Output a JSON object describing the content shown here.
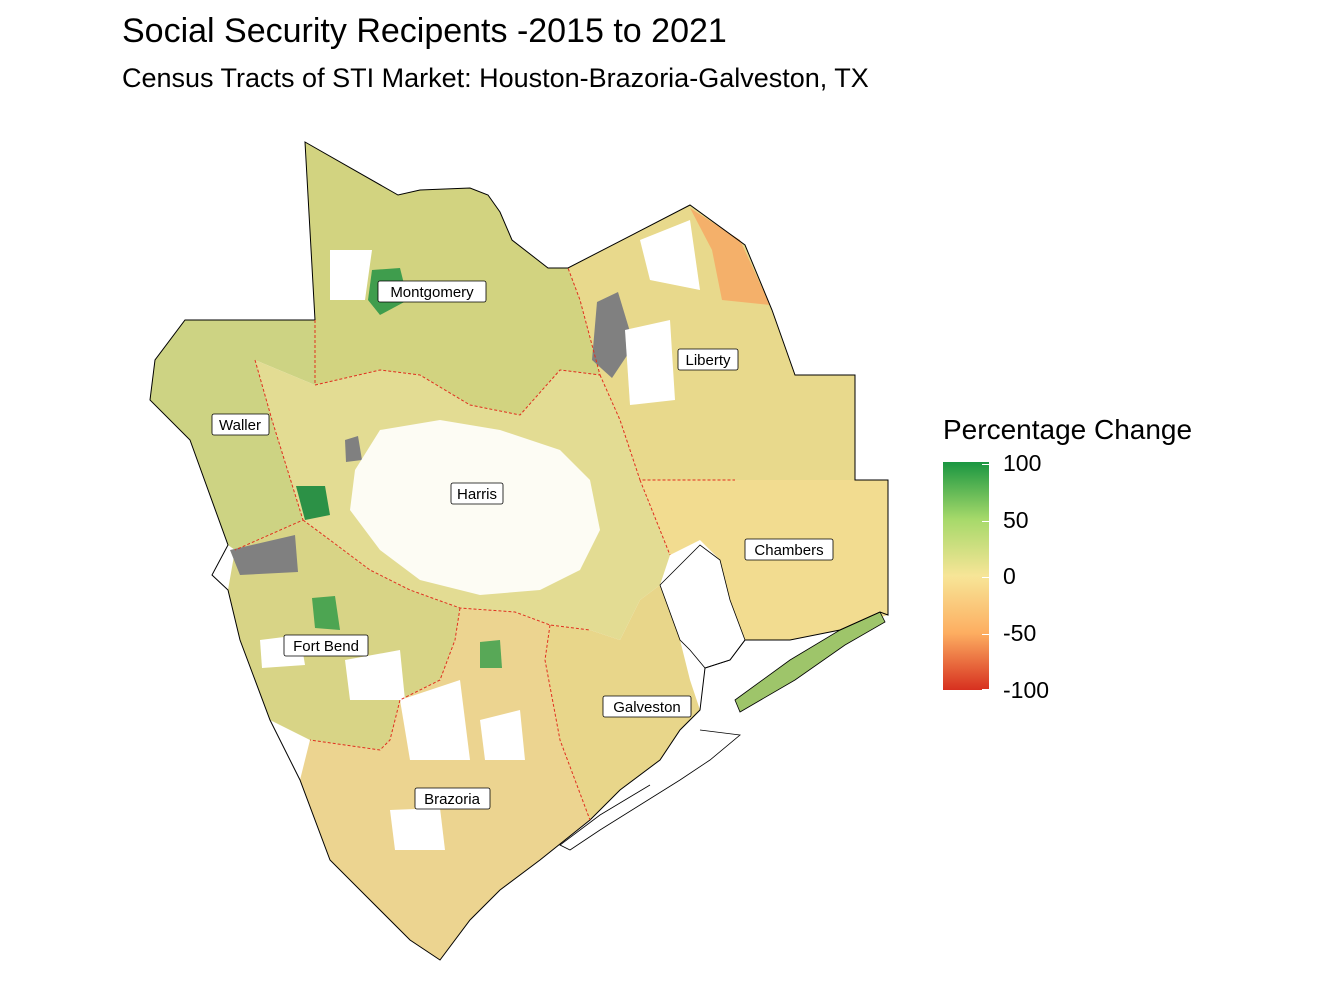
{
  "map": {
    "title": "Social Security Recipents -2015 to 2021",
    "subtitle": "Census Tracts of STI Market: Houston-Brazoria-Galveston, TX",
    "counties": [
      {
        "name": "Montgomery"
      },
      {
        "name": "Liberty"
      },
      {
        "name": "Waller"
      },
      {
        "name": "Harris"
      },
      {
        "name": "Chambers"
      },
      {
        "name": "Fort Bend"
      },
      {
        "name": "Galveston"
      },
      {
        "name": "Brazoria"
      }
    ],
    "legend": {
      "title": "Percentage Change",
      "ticks": [
        "100",
        "50",
        "0",
        "-50",
        "-100"
      ],
      "colors": {
        "high": "#1a9641",
        "mid_high": "#a6d96a",
        "mid": "#f7e597",
        "mid_low": "#fdae61",
        "low": "#d7301f",
        "no_data": "#808080"
      }
    }
  }
}
